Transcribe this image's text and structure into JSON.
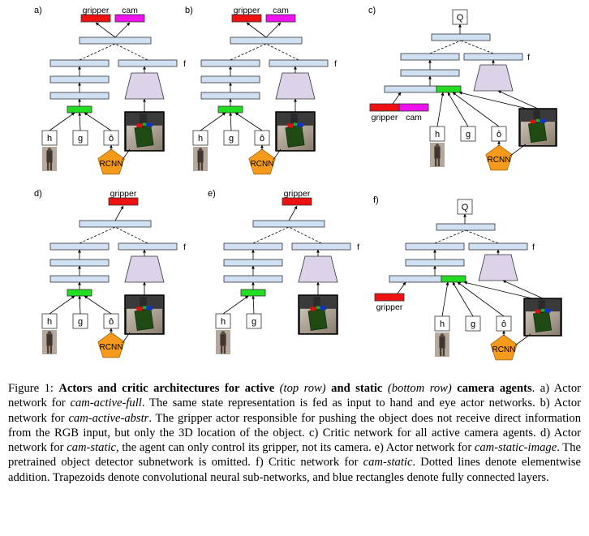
{
  "panels": [
    {
      "letter": "a)",
      "outputs": [
        "gripper",
        "cam"
      ],
      "f": "f",
      "inputs": [
        "h",
        "g",
        "ô"
      ],
      "rcnn": "RCNN"
    },
    {
      "letter": "b)",
      "outputs": [
        "gripper",
        "cam"
      ],
      "f": "f",
      "inputs": [
        "h",
        "g",
        "ô"
      ],
      "rcnn": "RCNN"
    },
    {
      "letter": "c)",
      "q": "Q",
      "f": "f",
      "action_inputs": [
        "gripper",
        "cam"
      ],
      "inputs": [
        "h",
        "g",
        "ô"
      ],
      "rcnn": "RCNN"
    },
    {
      "letter": "d)",
      "outputs": [
        "gripper"
      ],
      "f": "f",
      "inputs": [
        "h",
        "g",
        "ô"
      ],
      "rcnn": "RCNN"
    },
    {
      "letter": "e)",
      "outputs": [
        "gripper"
      ],
      "f": "f",
      "inputs": [
        "h",
        "g"
      ]
    },
    {
      "letter": "f)",
      "q": "Q",
      "f": "f",
      "action_inputs": [
        "gripper"
      ],
      "inputs": [
        "h",
        "g",
        "ô"
      ],
      "rcnn": "RCNN"
    }
  ],
  "colors": {
    "fc": "#cfe0f3",
    "conv": "#dcd3e8",
    "gripper": "#ee1111",
    "cam": "#ee11ee",
    "add": "#22dd22",
    "rcnn": "#f59a1a"
  },
  "caption": {
    "figure_label": "Figure 1: ",
    "b1": "Actors and critic architectures for active",
    "i1": " (top row) ",
    "b2": "and static",
    "i2": " (bottom row) ",
    "b3": " camera agents",
    "t1": ". a) Actor network for ",
    "i3": "cam-active-full",
    "t2": ". The same state representation is fed as input to hand and eye actor networks. b) Actor network for ",
    "i4": "cam-active-abstr",
    "t3": ". The gripper actor responsible for pushing the object does not receive direct information from the RGB input, but only the 3D location of the object. c) Critic network for all active camera agents. d) Actor network for ",
    "i5": "cam-static",
    "t4": ", the agent can only control its gripper, not its camera. e) Actor network for ",
    "i6": "cam-static-image",
    "t5": ". The pretrained object detector subnetwork is omitted. f) Critic network for ",
    "i7": "cam-static",
    "t6": ". Dotted lines denote elementwise addition. Trapezoids denote convolutional neural sub-networks, and blue rectangles denote fully connected layers."
  }
}
